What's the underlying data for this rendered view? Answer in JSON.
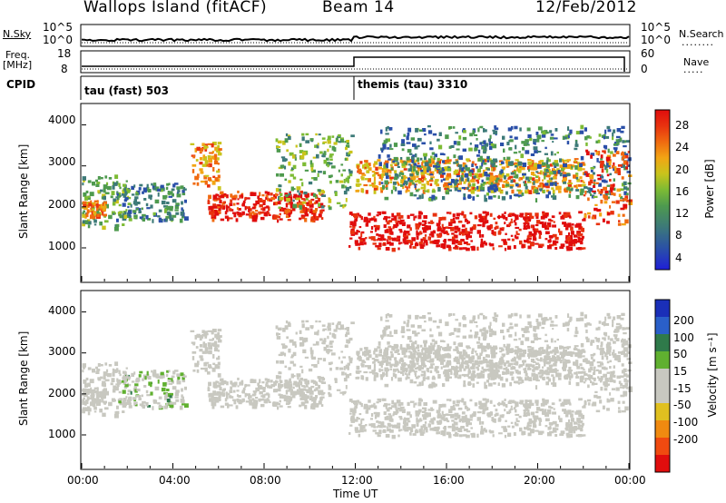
{
  "header": {
    "site": "Wallops Island (fitACF)",
    "beam": "Beam 14",
    "date": "12/Feb/2012"
  },
  "status_panels": {
    "nsky_label": "N.Sky",
    "nsearch_label": "N.Search",
    "noise_ticks": [
      "10^5",
      "10^0"
    ],
    "freq_label": "Freq.",
    "freq_unit": "[MHz]",
    "freq_ticks": [
      "18",
      "8"
    ],
    "nave_label": "Nave",
    "nave_ticks": [
      "60",
      "0"
    ],
    "cpid_label": "CPID",
    "schemes": [
      "tau (fast) 503",
      "themis (tau) 3310"
    ]
  },
  "colors": {
    "power": [
      "#1f1fd8",
      "#2a4fa8",
      "#3d7a78",
      "#4e9a4e",
      "#7dbb34",
      "#c9c41c",
      "#f2a514",
      "#f06a10",
      "#e8320f",
      "#e00d0d"
    ],
    "velocity": [
      "#1a2fb8",
      "#2a5fc9",
      "#2f7a4a",
      "#60b030",
      "#c8c8c0",
      "#c8c8c0",
      "#e0c020",
      "#f08a10",
      "#f04a10",
      "#e00d0d"
    ],
    "velocity_ground": "#c8c8c0"
  },
  "chart_data": {
    "type": "heatmap",
    "x_ticks": [
      "00:00",
      "04:00",
      "08:00",
      "12:00",
      "16:00",
      "20:00",
      "00:00"
    ],
    "xlabel": "Time UT",
    "xlim": [
      0,
      24
    ],
    "y_ticks": [
      "1000",
      "2000",
      "3000",
      "4000"
    ],
    "ylim": [
      180,
      4500
    ],
    "ylabel": "Slant Range [km]",
    "power_scale": {
      "label": "Power [dB]",
      "ticks": [
        "4",
        "8",
        "12",
        "16",
        "20",
        "24",
        "28"
      ],
      "range": [
        0,
        30
      ]
    },
    "velocity_scale": {
      "label": "Velocity [m s⁻¹]",
      "ticks": [
        "200",
        "100",
        "50",
        "15",
        "-15",
        "-50",
        "-100",
        "-200"
      ]
    },
    "echo_bands": [
      {
        "t0": 0.0,
        "t1": 2.0,
        "r0": 1500,
        "r1": 2800,
        "power": 12,
        "velocity": -5
      },
      {
        "t0": 0.0,
        "t1": 1.0,
        "r0": 1800,
        "r1": 2200,
        "power": 22,
        "velocity": -5
      },
      {
        "t0": 1.5,
        "t1": 4.5,
        "r0": 1700,
        "r1": 2600,
        "power": 8,
        "velocity": 40
      },
      {
        "t0": 4.7,
        "t1": 6.0,
        "r0": 2500,
        "r1": 3600,
        "power": 20,
        "velocity": -10
      },
      {
        "t0": 5.5,
        "t1": 10.5,
        "r0": 1700,
        "r1": 2400,
        "power": 27,
        "velocity": -10
      },
      {
        "t0": 8.5,
        "t1": 11.8,
        "r0": 2000,
        "r1": 3800,
        "power": 12,
        "velocity": -5
      },
      {
        "t0": 11.7,
        "t1": 22.0,
        "r0": 1000,
        "r1": 1900,
        "power": 29,
        "velocity": -5
      },
      {
        "t0": 12.0,
        "t1": 22.0,
        "r0": 2400,
        "r1": 3200,
        "power": 20,
        "velocity": -10
      },
      {
        "t0": 13.0,
        "t1": 24.0,
        "r0": 2200,
        "r1": 4000,
        "power": 8,
        "velocity": -10
      },
      {
        "t0": 22.0,
        "t1": 24.0,
        "r0": 1600,
        "r1": 3400,
        "power": 24,
        "velocity": -10
      }
    ]
  }
}
